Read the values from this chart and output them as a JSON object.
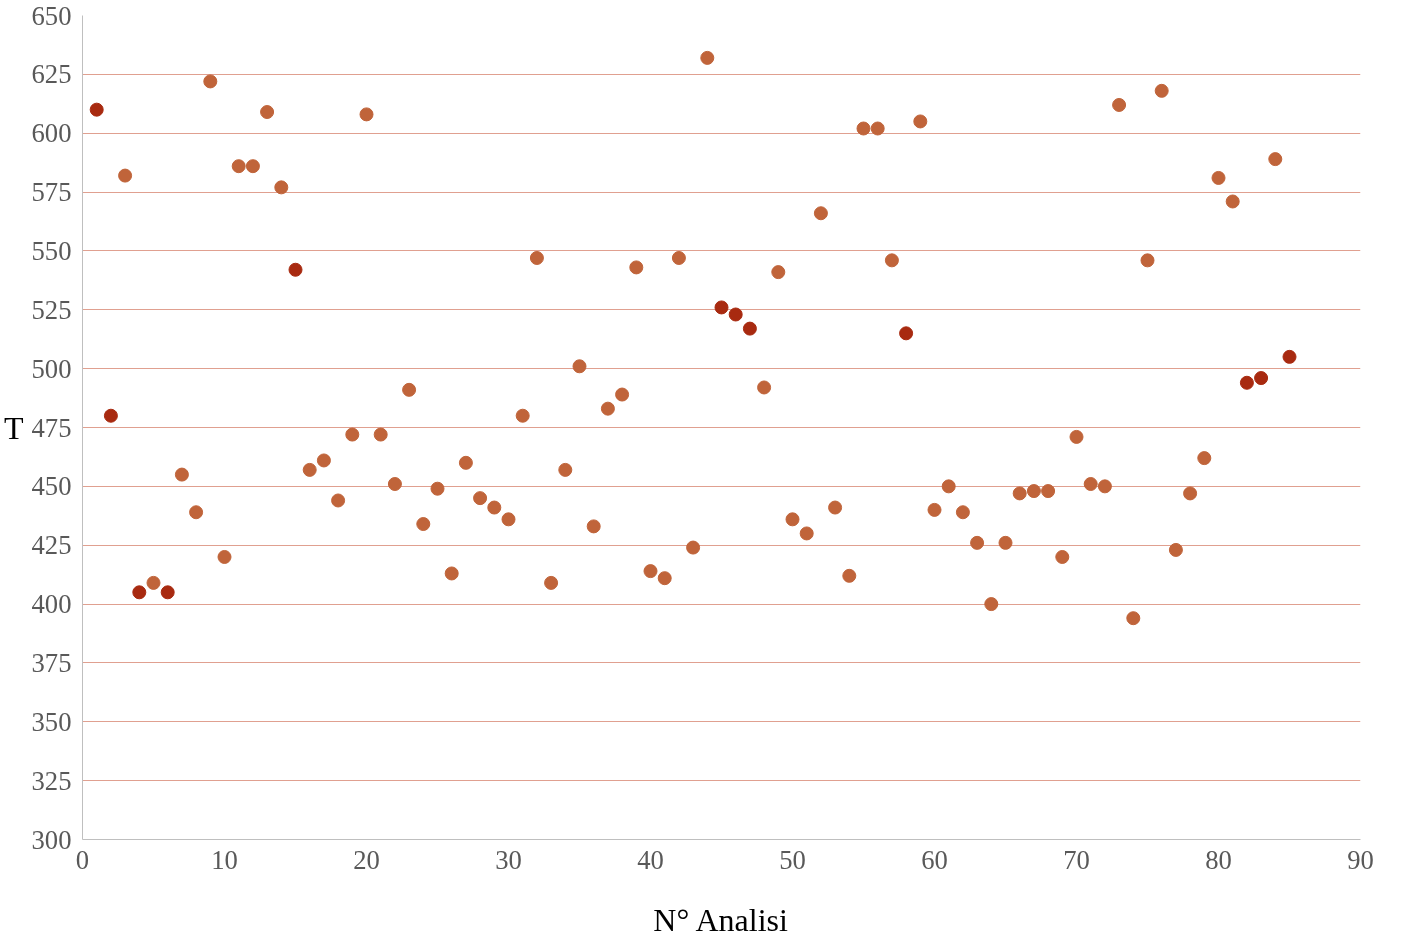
{
  "chart_data": {
    "type": "scatter",
    "xlabel": "N° Analisi",
    "ylabel": "T",
    "xlim": [
      0,
      90
    ],
    "ylim": [
      300,
      650
    ],
    "xticks": [
      0,
      10,
      20,
      30,
      40,
      50,
      60,
      70,
      80,
      90
    ],
    "yticks": [
      300,
      325,
      350,
      375,
      400,
      425,
      450,
      475,
      500,
      525,
      550,
      575,
      600,
      625,
      650
    ],
    "grid": "y",
    "marker": "circle",
    "series": [
      {
        "color": "#c0643a",
        "x": [
          3,
          5,
          7,
          8,
          9,
          10,
          11,
          12,
          13,
          14,
          16,
          17,
          18,
          19,
          20,
          21,
          22,
          23,
          24,
          25,
          26,
          27,
          28,
          29,
          30,
          31,
          32,
          33,
          34,
          35,
          36,
          37,
          38,
          39,
          40,
          41,
          42,
          43,
          44,
          48,
          49,
          50,
          51,
          52,
          53,
          54,
          55,
          56,
          57,
          59,
          60,
          61,
          62,
          63,
          64,
          65,
          66,
          67,
          68,
          69,
          70,
          71,
          72,
          73,
          74,
          75,
          76,
          77,
          78,
          79,
          80,
          81,
          84
        ],
        "values": [
          582,
          409,
          455,
          439,
          622,
          420,
          586,
          586,
          609,
          577,
          457,
          461,
          444,
          472,
          608,
          472,
          451,
          491,
          434,
          449,
          413,
          460,
          445,
          441,
          436,
          480,
          547,
          409,
          457,
          501,
          433,
          483,
          489,
          543,
          414,
          411,
          547,
          424,
          632,
          492,
          541,
          436,
          430,
          566,
          441,
          412,
          602,
          602,
          546,
          605,
          440,
          450,
          439,
          426,
          400,
          426,
          447,
          448,
          448,
          420,
          471,
          451,
          450,
          612,
          394,
          546,
          618,
          423,
          447,
          462,
          581,
          571,
          589
        ]
      },
      {
        "color": "#a82a10",
        "x": [
          1,
          2,
          4,
          6,
          15,
          45,
          46,
          47,
          58,
          82,
          83,
          85
        ],
        "values": [
          610,
          480,
          405,
          405,
          542,
          526,
          523,
          517,
          515,
          494,
          496,
          505
        ]
      }
    ]
  }
}
